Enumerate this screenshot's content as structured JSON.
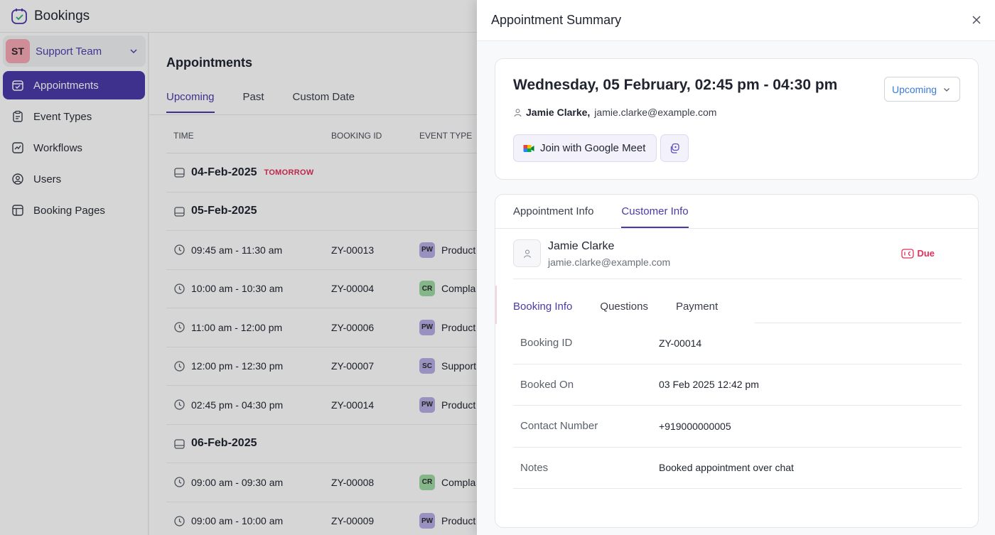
{
  "app": {
    "brand": "Bookings"
  },
  "team": {
    "initials": "ST",
    "name": "Support Team"
  },
  "sidebar": {
    "items": [
      {
        "label": "Appointments",
        "icon": "calendar-icon"
      },
      {
        "label": "Event Types",
        "icon": "clipboard-icon"
      },
      {
        "label": "Workflows",
        "icon": "workflow-icon"
      },
      {
        "label": "Users",
        "icon": "user-circle-icon"
      },
      {
        "label": "Booking Pages",
        "icon": "layout-icon"
      }
    ]
  },
  "appointments": {
    "title": "Appointments",
    "tabs": [
      "Upcoming",
      "Past",
      "Custom Date"
    ],
    "columns": {
      "time": "TIME",
      "booking_id": "BOOKING ID",
      "event_type": "EVENT TYPE"
    },
    "tomorrow_label": "TOMORROW",
    "rows": [
      {
        "kind": "date",
        "date": "04-Feb-2025",
        "tag": "TOMORROW"
      },
      {
        "kind": "date",
        "date": "05-Feb-2025"
      },
      {
        "kind": "appt",
        "time": "09:45 am - 11:30 am",
        "id": "ZY-00013",
        "badge": "PW",
        "type": "Product"
      },
      {
        "kind": "appt",
        "time": "10:00 am - 10:30 am",
        "id": "ZY-00004",
        "badge": "CR",
        "type": "Compla"
      },
      {
        "kind": "appt",
        "time": "11:00 am - 12:00 pm",
        "id": "ZY-00006",
        "badge": "PW",
        "type": "Product"
      },
      {
        "kind": "appt",
        "time": "12:00 pm - 12:30 pm",
        "id": "ZY-00007",
        "badge": "SC",
        "type": "Support"
      },
      {
        "kind": "appt",
        "time": "02:45 pm - 04:30 pm",
        "id": "ZY-00014",
        "badge": "PW",
        "type": "Product"
      },
      {
        "kind": "date",
        "date": "06-Feb-2025"
      },
      {
        "kind": "appt",
        "time": "09:00 am - 09:30 am",
        "id": "ZY-00008",
        "badge": "CR",
        "type": "Compla"
      },
      {
        "kind": "appt",
        "time": "09:00 am - 10:00 am",
        "id": "ZY-00009",
        "badge": "PW",
        "type": "Product"
      }
    ]
  },
  "summary": {
    "title": "Appointment Summary",
    "datetime": "Wednesday, 05 February, 02:45 pm - 04:30 pm",
    "status": "Upcoming",
    "attendee_name": "Jamie Clarke,",
    "attendee_email": "jamie.clarke@example.com",
    "meet_label": "Join with Google Meet",
    "tabs": [
      "Appointment Info",
      "Customer Info"
    ],
    "customer": {
      "name": "Jamie Clarke",
      "email": "jamie.clarke@example.com",
      "payment_status": "Due"
    },
    "sub_tabs": [
      "Booking Info",
      "Questions",
      "Payment"
    ],
    "booking_info": [
      {
        "key": "Booking ID",
        "value": "ZY-00014"
      },
      {
        "key": "Booked On",
        "value": "03 Feb 2025 12:42 pm"
      },
      {
        "key": "Contact Number",
        "value": "+919000000005"
      },
      {
        "key": "Notes",
        "value": "Booked appointment over chat"
      }
    ]
  },
  "colors": {
    "accent": "#4a3aa8",
    "due": "#e1305a",
    "status": "#3b7bdc"
  }
}
